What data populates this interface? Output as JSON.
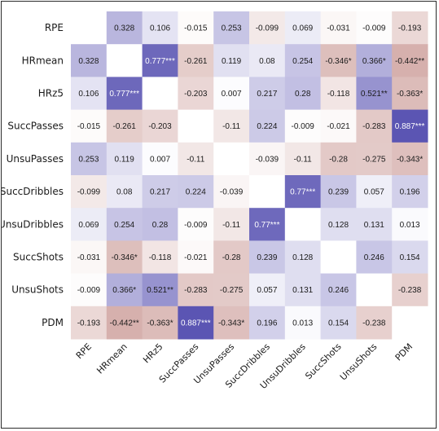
{
  "chart_data": {
    "type": "heatmap",
    "title": "",
    "rows": [
      "RPE",
      "HRmean",
      "HRz5",
      "SuccPasses",
      "UnsuPasses",
      "SuccDribbles",
      "UnsuDribbles",
      "SuccShots",
      "UnsuShots",
      "PDM"
    ],
    "columns": [
      "RPE",
      "HRmean",
      "HRz5",
      "SuccPasses",
      "UnsuPasses",
      "SuccDribbles",
      "UnsuDribbles",
      "SuccShots",
      "UnsuShots",
      "PDM"
    ],
    "values": [
      [
        null,
        0.328,
        0.106,
        -0.015,
        0.253,
        -0.099,
        0.069,
        -0.031,
        -0.009,
        -0.193
      ],
      [
        0.328,
        null,
        0.777,
        -0.261,
        0.119,
        0.08,
        0.254,
        -0.346,
        0.366,
        -0.442
      ],
      [
        0.106,
        0.777,
        null,
        -0.203,
        0.007,
        0.217,
        0.28,
        -0.118,
        0.521,
        -0.363
      ],
      [
        -0.015,
        -0.261,
        -0.203,
        null,
        -0.11,
        0.224,
        -0.009,
        -0.021,
        -0.283,
        0.887
      ],
      [
        0.253,
        0.119,
        0.007,
        -0.11,
        null,
        -0.039,
        -0.11,
        -0.28,
        -0.275,
        -0.343
      ],
      [
        -0.099,
        0.08,
        0.217,
        0.224,
        -0.039,
        null,
        0.77,
        0.239,
        0.057,
        0.196
      ],
      [
        0.069,
        0.254,
        0.28,
        -0.009,
        -0.11,
        0.77,
        null,
        0.128,
        0.131,
        0.013
      ],
      [
        -0.031,
        -0.346,
        -0.118,
        -0.021,
        -0.28,
        0.239,
        0.128,
        null,
        0.246,
        0.154
      ],
      [
        -0.009,
        0.366,
        0.521,
        -0.283,
        -0.275,
        0.057,
        0.131,
        0.246,
        null,
        -0.238
      ],
      [
        -0.193,
        -0.442,
        -0.363,
        0.887,
        -0.343,
        0.196,
        0.013,
        0.154,
        -0.238,
        null
      ]
    ],
    "labels": [
      [
        "",
        "0.328",
        "0.106",
        "-0.015",
        "0.253",
        "-0.099",
        "0.069",
        "-0.031",
        "-0.009",
        "-0.193"
      ],
      [
        "0.328",
        "",
        "0.777***",
        "-0.261",
        "0.119",
        "0.08",
        "0.254",
        "-0.346*",
        "0.366*",
        "-0.442**"
      ],
      [
        "0.106",
        "0.777***",
        "",
        "-0.203",
        "0.007",
        "0.217",
        "0.28",
        "-0.118",
        "0.521**",
        "-0.363*"
      ],
      [
        "-0.015",
        "-0.261",
        "-0.203",
        "",
        "-0.11",
        "0.224",
        "-0.009",
        "-0.021",
        "-0.283",
        "0.887***"
      ],
      [
        "0.253",
        "0.119",
        "0.007",
        "-0.11",
        "",
        "-0.039",
        "-0.11",
        "-0.28",
        "-0.275",
        "-0.343*"
      ],
      [
        "-0.099",
        "0.08",
        "0.217",
        "0.224",
        "-0.039",
        "",
        "0.77***",
        "0.239",
        "0.057",
        "0.196"
      ],
      [
        "0.069",
        "0.254",
        "0.28",
        "-0.009",
        "-0.11",
        "0.77***",
        "",
        "0.128",
        "0.131",
        "0.013"
      ],
      [
        "-0.031",
        "-0.346*",
        "-0.118",
        "-0.021",
        "-0.28",
        "0.239",
        "0.128",
        "",
        "0.246",
        "0.154"
      ],
      [
        "-0.009",
        "0.366*",
        "0.521**",
        "-0.283",
        "-0.275",
        "0.057",
        "0.131",
        "0.246",
        "",
        "-0.238"
      ],
      [
        "-0.193",
        "-0.442**",
        "-0.363*",
        "0.887***",
        "-0.343*",
        "0.196",
        "0.013",
        "0.154",
        "-0.238",
        ""
      ]
    ],
    "value_range": [
      -1,
      1
    ],
    "colors": {
      "positive": "#5b55b3",
      "negative": "#b4706a",
      "neutral": "#ffffff",
      "text_dark": "#1a1a1a",
      "text_light": "#ffffff"
    },
    "grid": false,
    "legend": "none"
  }
}
